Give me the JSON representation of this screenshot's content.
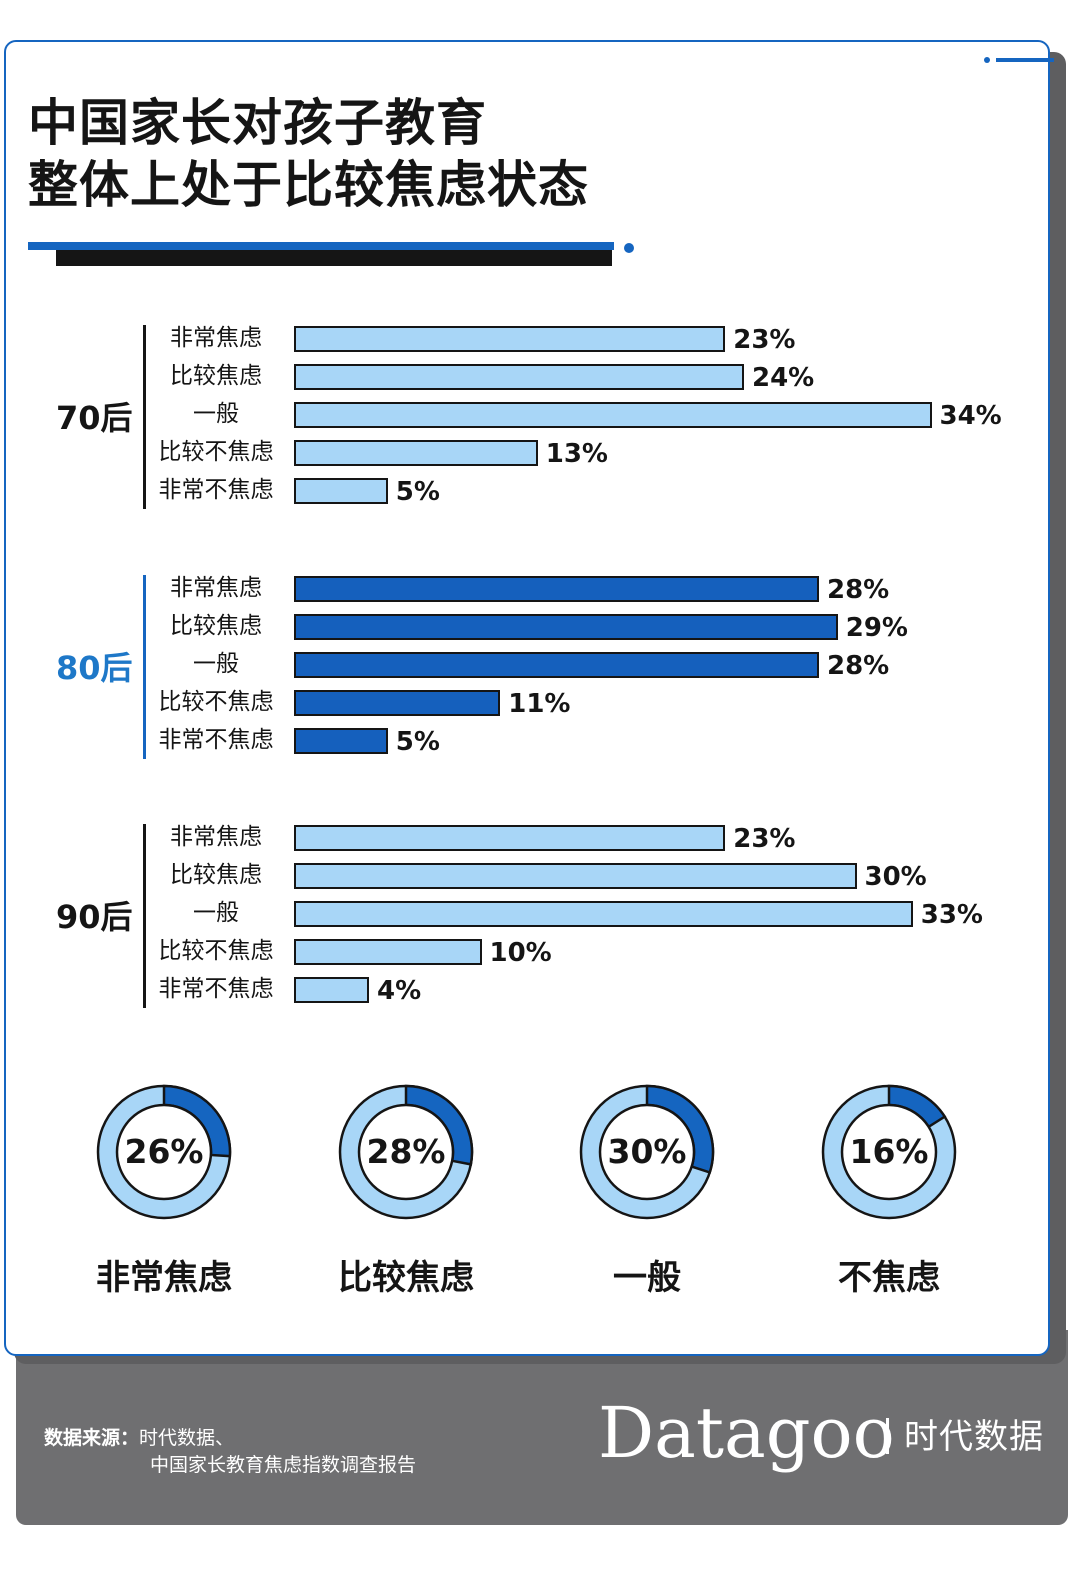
{
  "title_line1": "中国家长对孩子教育",
  "title_line2": "整体上处于比较焦虑状态",
  "colors": {
    "accent": "#1565c0",
    "bar_light": "#a8d6f7",
    "bar_dark": "#1560bd",
    "donut_light": "#a8d6f7",
    "donut_dark": "#1565c0",
    "footer": "#6f6f71"
  },
  "chart_data": [
    {
      "type": "bar",
      "orientation": "horizontal",
      "categories": [
        "非常焦虑",
        "比较焦虑",
        "一般",
        "比较不焦虑",
        "非常不焦虑"
      ],
      "series": [
        {
          "name": "70后",
          "values": [
            23,
            24,
            34,
            13,
            5
          ],
          "labels": [
            "23%",
            "24%",
            "34%",
            "13%",
            "5%"
          ],
          "style": "light"
        },
        {
          "name": "80后",
          "values": [
            28,
            29,
            28,
            11,
            5
          ],
          "labels": [
            "28%",
            "29%",
            "28%",
            "11%",
            "5%"
          ],
          "style": "dark"
        },
        {
          "name": "90后",
          "values": [
            23,
            30,
            33,
            10,
            4
          ],
          "labels": [
            "23%",
            "30%",
            "33%",
            "10%",
            "4%"
          ],
          "style": "light"
        }
      ],
      "unit": "%"
    },
    {
      "type": "pie",
      "subtype": "donut",
      "categories": [
        "非常焦虑",
        "比较焦虑",
        "一般",
        "不焦虑"
      ],
      "values": [
        26,
        28,
        30,
        16
      ],
      "labels": [
        "26%",
        "28%",
        "30%",
        "16%"
      ]
    }
  ],
  "footer": {
    "source_label": "数据来源：",
    "source_line1": "时代数据、",
    "source_line2": "中国家长教育焦虑指数调查报告",
    "logo_text": "Datagoo",
    "logo_cn": "时代数据"
  }
}
